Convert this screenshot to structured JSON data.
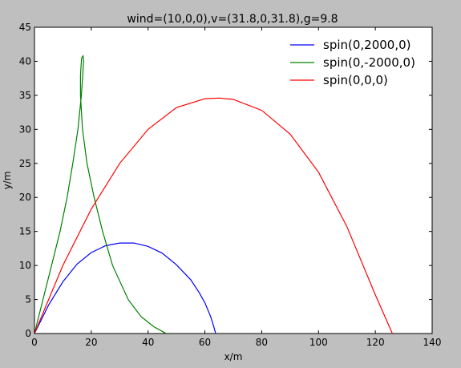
{
  "chart_data": {
    "type": "line",
    "title": "wind=(10,0,0),v=(31.8,0,31.8),g=9.8",
    "xlabel": "x/m",
    "ylabel": "y/m",
    "xlim": [
      0,
      140
    ],
    "ylim": [
      0,
      45
    ],
    "xticks": [
      "0",
      "20",
      "40",
      "60",
      "80",
      "100",
      "120",
      "140"
    ],
    "yticks": [
      "0",
      "5",
      "10",
      "15",
      "20",
      "25",
      "30",
      "35",
      "40",
      "45"
    ],
    "grid": false,
    "legend_position": "top-right",
    "series": [
      {
        "name": "spin(0,2000,0)",
        "color": "#0000ff",
        "points": [
          [
            0,
            0
          ],
          [
            5,
            4.2
          ],
          [
            10,
            7.6
          ],
          [
            15,
            10.2
          ],
          [
            20,
            11.9
          ],
          [
            25,
            12.9
          ],
          [
            30,
            13.3
          ],
          [
            35,
            13.3
          ],
          [
            40,
            12.8
          ],
          [
            45,
            11.8
          ],
          [
            50,
            10.1
          ],
          [
            55,
            7.9
          ],
          [
            58,
            6.0
          ],
          [
            60,
            4.5
          ],
          [
            62,
            2.5
          ],
          [
            63,
            1.2
          ],
          [
            63.8,
            0
          ]
        ]
      },
      {
        "name": "spin(0,-2000,0)",
        "color": "#008000",
        "points": [
          [
            0,
            0
          ],
          [
            3,
            5
          ],
          [
            6,
            10
          ],
          [
            9,
            15
          ],
          [
            11.5,
            20
          ],
          [
            13.5,
            25
          ],
          [
            15.3,
            30
          ],
          [
            16.5,
            35
          ],
          [
            17,
            38
          ],
          [
            17.3,
            40
          ],
          [
            17.1,
            40.8
          ],
          [
            16.6,
            40.5
          ],
          [
            16.2,
            38
          ],
          [
            16.2,
            35
          ],
          [
            16.9,
            30
          ],
          [
            18.5,
            25
          ],
          [
            21,
            20
          ],
          [
            24,
            15
          ],
          [
            27.5,
            10
          ],
          [
            33,
            5
          ],
          [
            37.5,
            2.5
          ],
          [
            42,
            1
          ],
          [
            45.5,
            0.2
          ],
          [
            46.5,
            0
          ]
        ]
      },
      {
        "name": "spin(0,0,0)",
        "color": "#ff0000",
        "points": [
          [
            0,
            0
          ],
          [
            10,
            10
          ],
          [
            20,
            18.3
          ],
          [
            30,
            25
          ],
          [
            40,
            30
          ],
          [
            50,
            33.2
          ],
          [
            60,
            34.5
          ],
          [
            65,
            34.6
          ],
          [
            70,
            34.4
          ],
          [
            80,
            32.8
          ],
          [
            90,
            29.3
          ],
          [
            100,
            23.7
          ],
          [
            110,
            15.7
          ],
          [
            120,
            5.7
          ],
          [
            126,
            0
          ]
        ]
      }
    ]
  }
}
